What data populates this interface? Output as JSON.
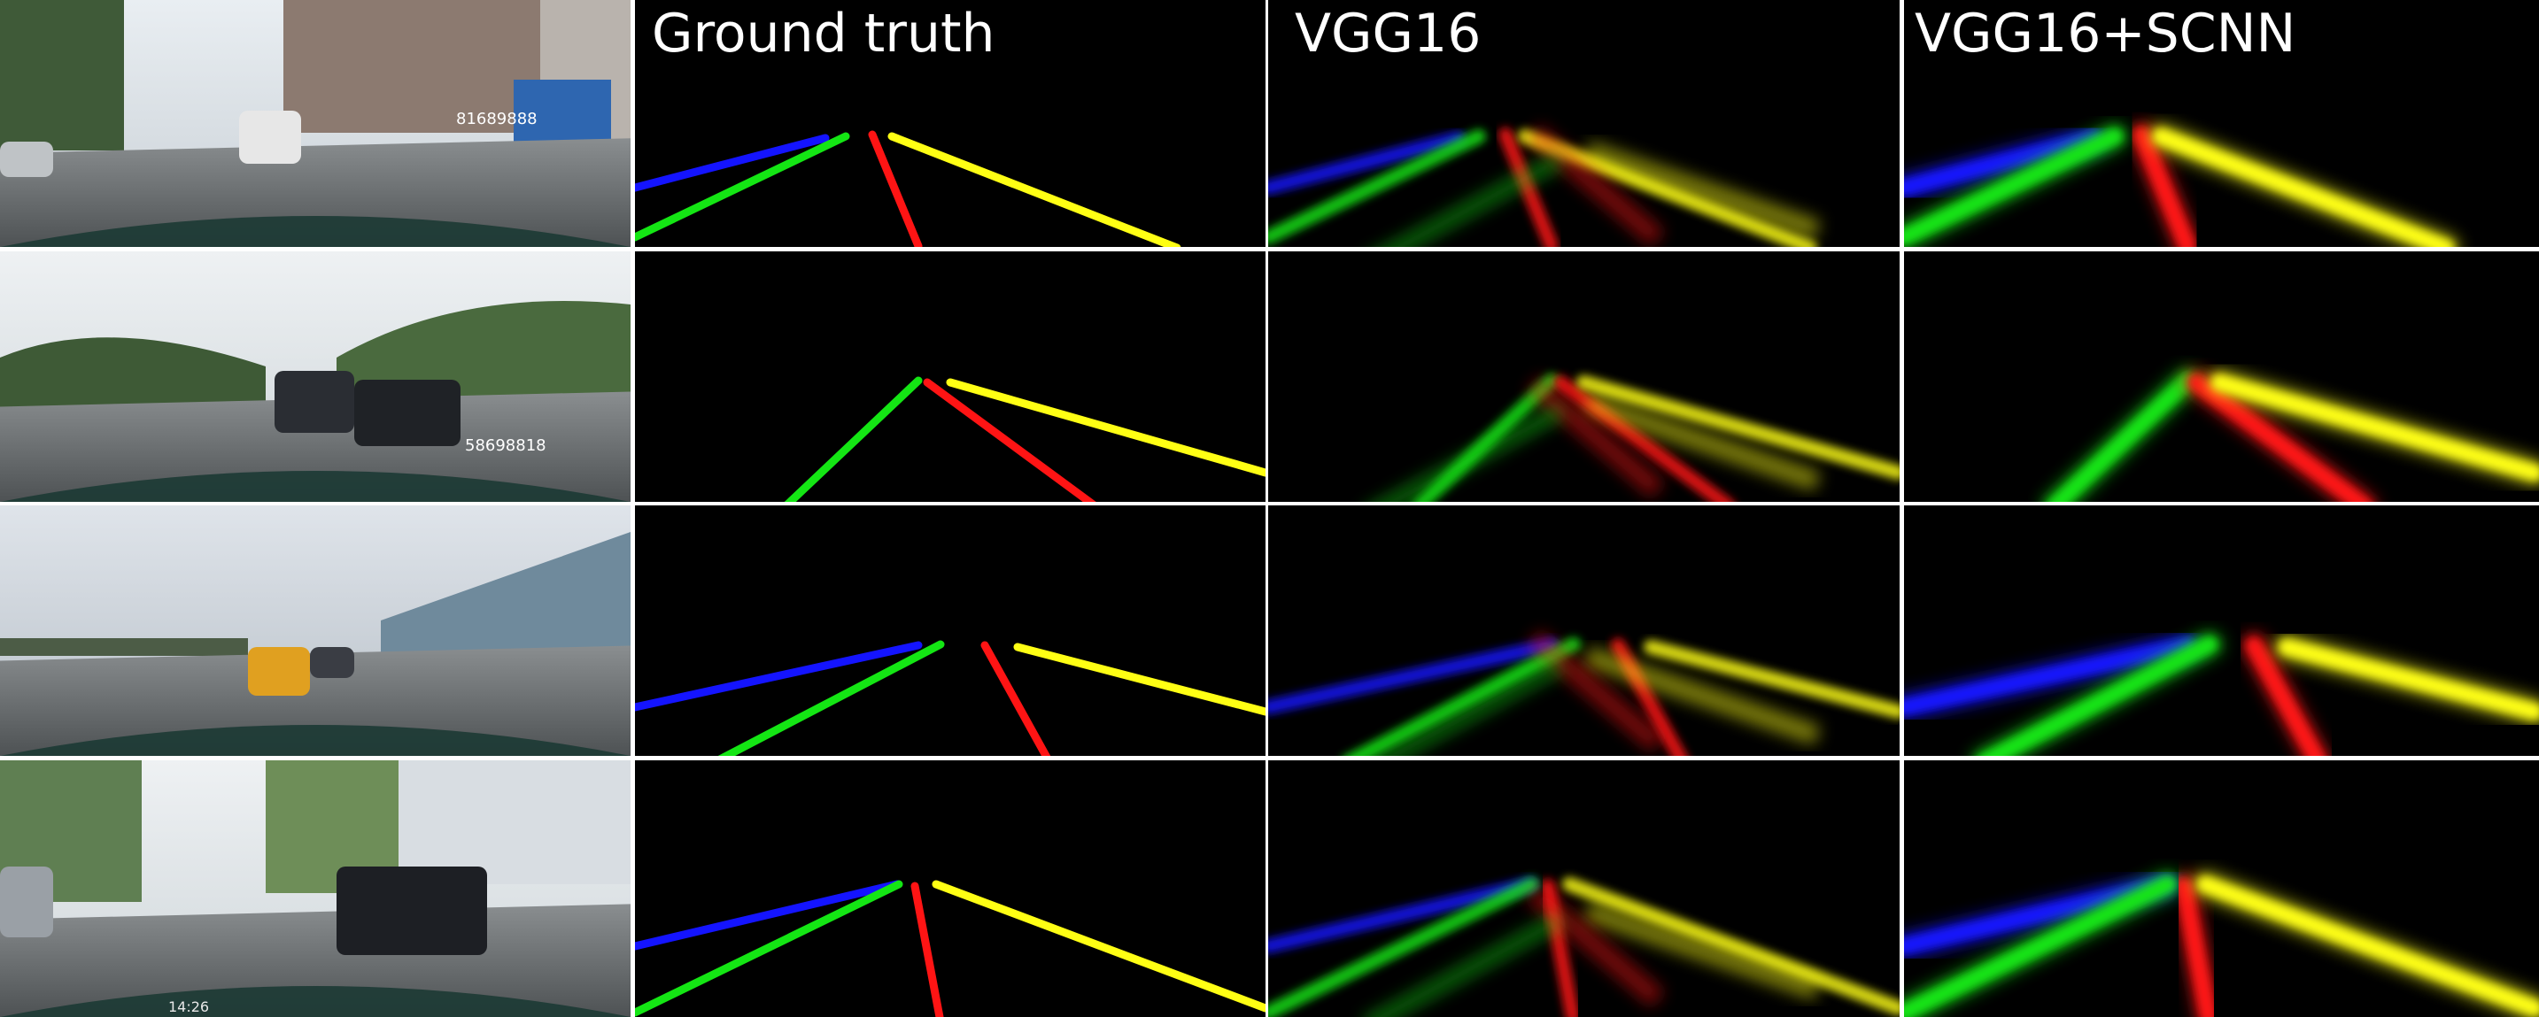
{
  "figure": {
    "columns": [
      {
        "key": "input",
        "title": ""
      },
      {
        "key": "gt",
        "title": "Ground truth"
      },
      {
        "key": "vgg",
        "title": "VGG16"
      },
      {
        "key": "scnn",
        "title": "VGG16+SCNN"
      }
    ],
    "lane_colors": {
      "lane1": "#1414ff",
      "lane2": "#14e614",
      "lane3": "#ff1414",
      "lane4": "#ffff14"
    },
    "photo_overlays": [
      {
        "row": 0,
        "sign_text": "81689888"
      },
      {
        "row": 1,
        "sign_text": "58698818"
      },
      {
        "row": 2,
        "sign_text": ""
      },
      {
        "row": 3,
        "sign_text": "14:26"
      }
    ]
  }
}
